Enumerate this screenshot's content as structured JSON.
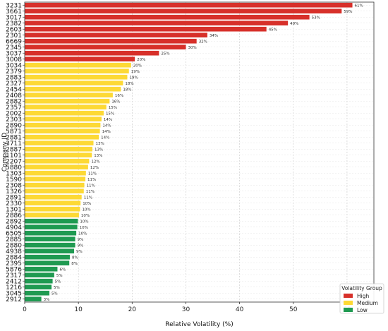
{
  "chart_data": {
    "type": "bar",
    "orientation": "horizontal",
    "xlabel": "Relative Volatility (%)",
    "ylabel": "Company ID",
    "xlim": [
      0,
      65
    ],
    "xticks": [
      0,
      10,
      20,
      30,
      40,
      50,
      60
    ],
    "grid": "vertical dashed",
    "legend": {
      "title": "Volatility Group",
      "placement": "bottom-right",
      "entries": [
        {
          "name": "High",
          "color": "#d7302a"
        },
        {
          "name": "Medium",
          "color": "#fdd935"
        },
        {
          "name": "Low",
          "color": "#1f9a51"
        }
      ]
    },
    "bars": [
      {
        "id": "3231",
        "value": 61,
        "label": "61%",
        "group": "High"
      },
      {
        "id": "3661",
        "value": 59,
        "label": "59%",
        "group": "High"
      },
      {
        "id": "3017",
        "value": 53,
        "label": "53%",
        "group": "High"
      },
      {
        "id": "2382",
        "value": 49,
        "label": "49%",
        "group": "High"
      },
      {
        "id": "2603",
        "value": 45,
        "label": "45%",
        "group": "High"
      },
      {
        "id": "2301",
        "value": 34,
        "label": "34%",
        "group": "High"
      },
      {
        "id": "6669",
        "value": 32,
        "label": "32%",
        "group": "High"
      },
      {
        "id": "2345",
        "value": 30,
        "label": "30%",
        "group": "High"
      },
      {
        "id": "3037",
        "value": 25,
        "label": "25%",
        "group": "High"
      },
      {
        "id": "3008",
        "value": 20.5,
        "label": "20%",
        "group": "High"
      },
      {
        "id": "3034",
        "value": 19.8,
        "label": "20%",
        "group": "Medium"
      },
      {
        "id": "2379",
        "value": 19.4,
        "label": "19%",
        "group": "Medium"
      },
      {
        "id": "2883",
        "value": 19.1,
        "label": "19%",
        "group": "Medium"
      },
      {
        "id": "2327",
        "value": 18.3,
        "label": "18%",
        "group": "Medium"
      },
      {
        "id": "2454",
        "value": 17.9,
        "label": "18%",
        "group": "Medium"
      },
      {
        "id": "2408",
        "value": 16.4,
        "label": "16%",
        "group": "Medium"
      },
      {
        "id": "2882",
        "value": 15.8,
        "label": "16%",
        "group": "Medium"
      },
      {
        "id": "2357",
        "value": 15.2,
        "label": "15%",
        "group": "Medium"
      },
      {
        "id": "2002",
        "value": 14.7,
        "label": "15%",
        "group": "Medium"
      },
      {
        "id": "2303",
        "value": 14.3,
        "label": "14%",
        "group": "Medium"
      },
      {
        "id": "2890",
        "value": 14.1,
        "label": "14%",
        "group": "Medium"
      },
      {
        "id": "5871",
        "value": 14.0,
        "label": "14%",
        "group": "Medium"
      },
      {
        "id": "2881",
        "value": 13.8,
        "label": "14%",
        "group": "Medium"
      },
      {
        "id": "3711",
        "value": 12.8,
        "label": "13%",
        "group": "Medium"
      },
      {
        "id": "2887",
        "value": 12.6,
        "label": "13%",
        "group": "Medium"
      },
      {
        "id": "1101",
        "value": 12.5,
        "label": "13%",
        "group": "Medium"
      },
      {
        "id": "2207",
        "value": 12.0,
        "label": "12%",
        "group": "Medium"
      },
      {
        "id": "5880",
        "value": 11.8,
        "label": "12%",
        "group": "Medium"
      },
      {
        "id": "1303",
        "value": 11.4,
        "label": "11%",
        "group": "Medium"
      },
      {
        "id": "1590",
        "value": 11.3,
        "label": "11%",
        "group": "Medium"
      },
      {
        "id": "2308",
        "value": 11.1,
        "label": "11%",
        "group": "Medium"
      },
      {
        "id": "1326",
        "value": 11.0,
        "label": "11%",
        "group": "Medium"
      },
      {
        "id": "2891",
        "value": 10.6,
        "label": "11%",
        "group": "Medium"
      },
      {
        "id": "2330",
        "value": 10.4,
        "label": "10%",
        "group": "Medium"
      },
      {
        "id": "1301",
        "value": 10.3,
        "label": "10%",
        "group": "Medium"
      },
      {
        "id": "2886",
        "value": 10.1,
        "label": "10%",
        "group": "Medium"
      },
      {
        "id": "2892",
        "value": 9.9,
        "label": "10%",
        "group": "Low"
      },
      {
        "id": "4904",
        "value": 9.8,
        "label": "10%",
        "group": "Low"
      },
      {
        "id": "6505",
        "value": 9.6,
        "label": "10%",
        "group": "Low"
      },
      {
        "id": "2885",
        "value": 9.4,
        "label": "9%",
        "group": "Low"
      },
      {
        "id": "2880",
        "value": 9.4,
        "label": "9%",
        "group": "Low"
      },
      {
        "id": "4938",
        "value": 9.2,
        "label": "9%",
        "group": "Low"
      },
      {
        "id": "2884",
        "value": 8.4,
        "label": "8%",
        "group": "Low"
      },
      {
        "id": "2395",
        "value": 8.3,
        "label": "8%",
        "group": "Low"
      },
      {
        "id": "5876",
        "value": 6.1,
        "label": "6%",
        "group": "Low"
      },
      {
        "id": "2317",
        "value": 5.5,
        "label": "5%",
        "group": "Low"
      },
      {
        "id": "2412",
        "value": 5.2,
        "label": "5%",
        "group": "Low"
      },
      {
        "id": "1216",
        "value": 5.0,
        "label": "5%",
        "group": "Low"
      },
      {
        "id": "3045",
        "value": 4.6,
        "label": "5%",
        "group": "Low"
      },
      {
        "id": "2912",
        "value": 3.1,
        "label": "3%",
        "group": "Low"
      }
    ]
  }
}
